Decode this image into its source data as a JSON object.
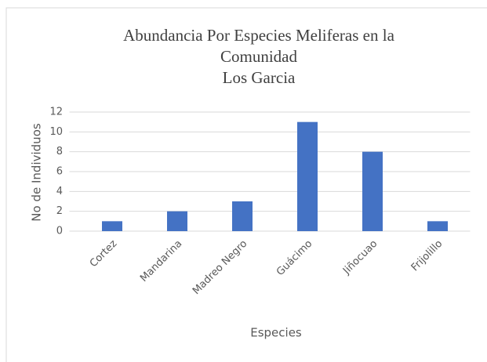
{
  "chart_data": {
    "type": "bar",
    "title": [
      "Abundancia Por Especies Meliferas en la",
      "Comunidad",
      "Los Garcia"
    ],
    "x_label": "Especies",
    "y_label": "No de Individuos",
    "categories": [
      "Cortez",
      "Mandarina",
      "Madreo Negro",
      "Guácimo",
      "Jiñocuao",
      "Frijolillo"
    ],
    "values": [
      1,
      2,
      3,
      11,
      8,
      1
    ],
    "color": "#4472c4",
    "ylim": [
      0,
      12
    ],
    "yticks": [
      0,
      2,
      4,
      6,
      8,
      10,
      12
    ],
    "grid": true
  }
}
